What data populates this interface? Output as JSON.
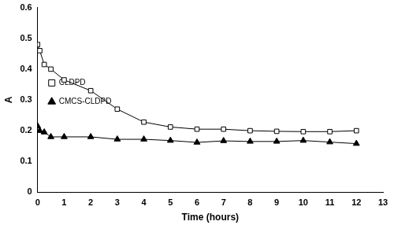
{
  "chart_data": {
    "type": "line",
    "x_label": "Time (hours)",
    "y_label": "A",
    "x": [
      0,
      0.083,
      0.25,
      0.5,
      1,
      2,
      3,
      4,
      5,
      6,
      7,
      8,
      9,
      10,
      11,
      12
    ],
    "series": [
      {
        "name": "CLDPD",
        "color": "#000000",
        "marker": "open-square",
        "values": [
          0.48,
          0.46,
          0.415,
          0.4,
          0.365,
          0.33,
          0.27,
          0.228,
          0.212,
          0.205,
          0.205,
          0.2,
          0.198,
          0.197,
          0.197,
          0.2
        ]
      },
      {
        "name": "CMCS-CLDPD",
        "color": "#000000",
        "marker": "triangle",
        "values": [
          0.215,
          0.2,
          0.195,
          0.18,
          0.18,
          0.18,
          0.172,
          0.172,
          0.168,
          0.162,
          0.167,
          0.165,
          0.165,
          0.168,
          0.163,
          0.158
        ]
      }
    ],
    "xlim": [
      0,
      13
    ],
    "xticks": [
      0,
      1,
      2,
      3,
      4,
      5,
      6,
      7,
      8,
      9,
      10,
      11,
      12,
      13
    ],
    "ylim": [
      0,
      0.6
    ],
    "yticks": [
      0,
      0.1,
      0.2,
      0.3,
      0.4,
      0.5,
      0.6
    ],
    "grid": false,
    "legend": "top"
  }
}
